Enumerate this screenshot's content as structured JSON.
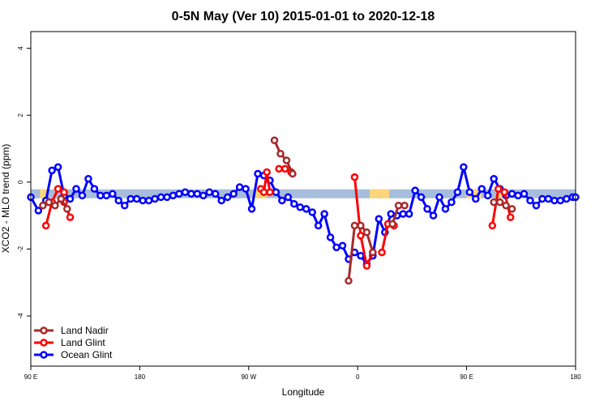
{
  "chart_data": {
    "type": "line",
    "title": "0-5N May (Ver 10)   2015-01-01 to 2020-12-18",
    "xlabel": "Longitude",
    "ylabel": "XCO2 - MLO trend (ppm)",
    "xlim": [
      90,
      450
    ],
    "ylim": [
      -5.5,
      4.5
    ],
    "x_ticks": [
      {
        "value": 90,
        "label": "90 E"
      },
      {
        "value": 162,
        "label": "180"
      },
      {
        "value": 234,
        "label": "90 W"
      },
      {
        "value": 306,
        "label": "0"
      },
      {
        "value": 378,
        "label": "90 E"
      },
      {
        "value": 450,
        "label": "180"
      }
    ],
    "y_ticks": [
      {
        "value": -4,
        "label": "-4"
      },
      {
        "value": -2,
        "label": "-2"
      },
      {
        "value": 0,
        "label": "0"
      },
      {
        "value": 2,
        "label": "2"
      },
      {
        "value": 4,
        "label": "4"
      }
    ],
    "grid": false,
    "legend_position": "bottom-left",
    "band": {
      "y_center": -0.35,
      "default_color": "#a6bddb",
      "highlight_color": "#fdd57a",
      "highlight_ranges": [
        [
          96,
          101
        ],
        [
          238,
          246
        ],
        [
          314,
          327
        ],
        [
          378,
          388
        ],
        [
          398,
          403
        ]
      ]
    },
    "series": [
      {
        "name": "Land Nadir",
        "color": "#a52a2a",
        "segments": [
          {
            "x": [
              98,
              102,
              106,
              110,
              114
            ],
            "y": [
              -0.7,
              -0.6,
              -0.7,
              -0.5,
              -0.8
            ]
          },
          {
            "x": [
              251,
              255,
              259,
              263
            ],
            "y": [
              1.25,
              0.85,
              0.65,
              0.25
            ]
          },
          {
            "x": [
              300,
              304,
              308,
              312,
              316
            ],
            "y": [
              -2.95,
              -1.3,
              -1.3,
              -1.5,
              -2.1
            ]
          },
          {
            "x": [
              329,
              333,
              337
            ],
            "y": [
              -1.25,
              -0.7,
              -0.7
            ]
          },
          {
            "x": [
              396,
              400,
              404,
              408
            ],
            "y": [
              -0.6,
              -0.6,
              -0.7,
              -0.8
            ]
          }
        ]
      },
      {
        "name": "Land Glint",
        "color": "#ff0000",
        "segments": [
          {
            "x": [
              100,
              104,
              108,
              112
            ],
            "y": [
              -1.3,
              -0.6,
              -0.2,
              -0.3
            ]
          },
          {
            "x": [
              112,
              116
            ],
            "y": [
              -0.6,
              -1.05
            ]
          },
          {
            "x": [
              242,
              244,
              246,
              248
            ],
            "y": [
              -0.2,
              -0.3,
              0.3,
              -0.3
            ]
          },
          {
            "x": [
              254,
              258,
              262
            ],
            "y": [
              0.4,
              0.4,
              0.3
            ]
          },
          {
            "x": [
              304,
              308,
              312,
              316
            ],
            "y": [
              0.15,
              -1.6,
              -2.5,
              -2.1
            ]
          },
          {
            "x": [
              322,
              326,
              330
            ],
            "y": [
              -2.1,
              -1.25,
              -1.3
            ]
          },
          {
            "x": [
              395,
              399,
              403,
              407
            ],
            "y": [
              -1.3,
              -0.2,
              -0.3,
              -1.05
            ]
          }
        ]
      },
      {
        "name": "Ocean Glint",
        "color": "#0000ff",
        "segments": [
          {
            "x": [
              90,
              95,
              100,
              104,
              108,
              112,
              116,
              120,
              124,
              128,
              132,
              136,
              140,
              144,
              148,
              152,
              156,
              160,
              164,
              168,
              172,
              176,
              180,
              184,
              188,
              192,
              196,
              200,
              204,
              208,
              212,
              216,
              220,
              224,
              228,
              232,
              236,
              240,
              244,
              248,
              252,
              256,
              260,
              264,
              268,
              272,
              276,
              280,
              284,
              288,
              292,
              296,
              300,
              304,
              308,
              312,
              316,
              320,
              324,
              328,
              332,
              336,
              340,
              344,
              348,
              352,
              356,
              360,
              364,
              368,
              372,
              376,
              380,
              384,
              388,
              392,
              396,
              400,
              404,
              408,
              412,
              416,
              420,
              424,
              428,
              432,
              436,
              440,
              444,
              448,
              450
            ],
            "y": [
              -0.45,
              -0.85,
              -0.55,
              0.35,
              0.45,
              -0.4,
              -0.5,
              -0.2,
              -0.4,
              0.1,
              -0.2,
              -0.4,
              -0.4,
              -0.35,
              -0.55,
              -0.7,
              -0.5,
              -0.5,
              -0.55,
              -0.55,
              -0.5,
              -0.45,
              -0.45,
              -0.4,
              -0.35,
              -0.3,
              -0.35,
              -0.35,
              -0.4,
              -0.3,
              -0.35,
              -0.55,
              -0.45,
              -0.35,
              -0.15,
              -0.2,
              -0.8,
              0.25,
              0.2,
              0.05,
              -0.3,
              -0.55,
              -0.45,
              -0.65,
              -0.75,
              -0.8,
              -0.9,
              -1.3,
              -0.95,
              -1.65,
              -1.95,
              -1.9,
              -2.3,
              -2.1,
              -2.2,
              -2.45,
              -2.2,
              -1.1,
              -1.5,
              -0.95,
              -1.0,
              -0.95,
              -0.95,
              -0.25,
              -0.45,
              -0.8,
              -1.0,
              -0.45,
              -0.8,
              -0.6,
              -0.3,
              0.45,
              -0.3,
              -0.5,
              -0.2,
              -0.4,
              0.1,
              -0.2,
              -0.4,
              -0.35,
              -0.4,
              -0.35,
              -0.55,
              -0.7,
              -0.5,
              -0.5,
              -0.55,
              -0.55,
              -0.5,
              -0.45,
              -0.45
            ]
          }
        ]
      }
    ]
  }
}
